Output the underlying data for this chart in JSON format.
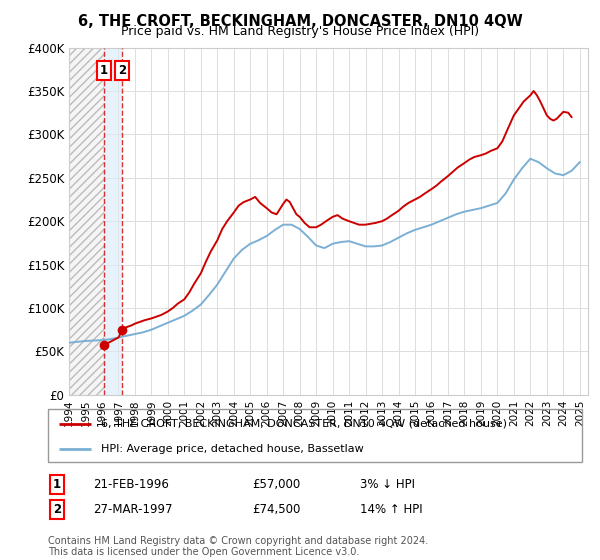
{
  "title": "6, THE CROFT, BECKINGHAM, DONCASTER, DN10 4QW",
  "subtitle": "Price paid vs. HM Land Registry's House Price Index (HPI)",
  "legend_line1": "6, THE CROFT, BECKINGHAM, DONCASTER, DN10 4QW (detached house)",
  "legend_line2": "HPI: Average price, detached house, Bassetlaw",
  "transaction1_date": "21-FEB-1996",
  "transaction1_price": 57000,
  "transaction1_hpi": "3% ↓ HPI",
  "transaction1_label": "1",
  "transaction2_date": "27-MAR-1997",
  "transaction2_price": 74500,
  "transaction2_hpi": "14% ↑ HPI",
  "transaction2_label": "2",
  "footer": "Contains HM Land Registry data © Crown copyright and database right 2024.\nThis data is licensed under the Open Government Licence v3.0.",
  "xmin": 1994.0,
  "xmax": 2025.5,
  "ymin": 0,
  "ymax": 400000,
  "transaction1_x": 1996.13,
  "transaction2_x": 1997.24,
  "red_color": "#cc0000",
  "blue_color": "#7bafd4",
  "hatch_color": "#cccccc",
  "shade_color": "#ddeeff",
  "grid_color": "#dddddd",
  "yticks": [
    0,
    50000,
    100000,
    150000,
    200000,
    250000,
    300000,
    350000,
    400000
  ],
  "ytick_labels": [
    "£0",
    "£50K",
    "£100K",
    "£150K",
    "£200K",
    "£250K",
    "£300K",
    "£350K",
    "£400K"
  ],
  "xticks": [
    1994,
    1995,
    1996,
    1997,
    1998,
    1999,
    2000,
    2001,
    2002,
    2003,
    2004,
    2005,
    2006,
    2007,
    2008,
    2009,
    2010,
    2011,
    2012,
    2013,
    2014,
    2015,
    2016,
    2017,
    2018,
    2019,
    2020,
    2021,
    2022,
    2023,
    2024,
    2025
  ],
  "hpi_years": [
    1994.0,
    1994.5,
    1995.0,
    1995.5,
    1996.0,
    1996.5,
    1997.0,
    1997.5,
    1998.0,
    1998.5,
    1999.0,
    1999.5,
    2000.0,
    2000.5,
    2001.0,
    2001.5,
    2002.0,
    2002.5,
    2003.0,
    2003.5,
    2004.0,
    2004.5,
    2005.0,
    2005.5,
    2006.0,
    2006.5,
    2007.0,
    2007.5,
    2008.0,
    2008.5,
    2009.0,
    2009.5,
    2010.0,
    2010.5,
    2011.0,
    2011.5,
    2012.0,
    2012.5,
    2013.0,
    2013.5,
    2014.0,
    2014.5,
    2015.0,
    2015.5,
    2016.0,
    2016.5,
    2017.0,
    2017.5,
    2018.0,
    2018.5,
    2019.0,
    2019.5,
    2020.0,
    2020.5,
    2021.0,
    2021.5,
    2022.0,
    2022.5,
    2023.0,
    2023.5,
    2024.0,
    2024.5,
    2025.0
  ],
  "hpi_values": [
    60000,
    61000,
    62000,
    62500,
    63000,
    64000,
    66000,
    68000,
    70000,
    72000,
    75000,
    79000,
    83000,
    87000,
    91000,
    97000,
    104000,
    115000,
    127000,
    142000,
    157000,
    167000,
    174000,
    178000,
    183000,
    190000,
    196000,
    196000,
    191000,
    182000,
    172000,
    169000,
    174000,
    176000,
    177000,
    174000,
    171000,
    171000,
    172000,
    176000,
    181000,
    186000,
    190000,
    193000,
    196000,
    200000,
    204000,
    208000,
    211000,
    213000,
    215000,
    218000,
    221000,
    232000,
    248000,
    261000,
    272000,
    268000,
    261000,
    255000,
    253000,
    258000,
    268000
  ],
  "red_years": [
    1996.13,
    1996.4,
    1996.7,
    1997.0,
    1997.24,
    1997.5,
    1997.8,
    1998.0,
    1998.3,
    1998.6,
    1999.0,
    1999.3,
    1999.6,
    2000.0,
    2000.3,
    2000.6,
    2001.0,
    2001.3,
    2001.6,
    2002.0,
    2002.3,
    2002.6,
    2003.0,
    2003.3,
    2003.6,
    2004.0,
    2004.3,
    2004.6,
    2005.0,
    2005.3,
    2005.6,
    2006.0,
    2006.3,
    2006.6,
    2007.0,
    2007.2,
    2007.4,
    2007.6,
    2007.8,
    2008.0,
    2008.3,
    2008.6,
    2009.0,
    2009.3,
    2009.6,
    2010.0,
    2010.3,
    2010.6,
    2011.0,
    2011.3,
    2011.6,
    2012.0,
    2012.3,
    2012.6,
    2013.0,
    2013.3,
    2013.6,
    2014.0,
    2014.3,
    2014.6,
    2015.0,
    2015.3,
    2015.6,
    2016.0,
    2016.3,
    2016.6,
    2017.0,
    2017.3,
    2017.6,
    2018.0,
    2018.3,
    2018.6,
    2019.0,
    2019.3,
    2019.6,
    2020.0,
    2020.3,
    2020.6,
    2021.0,
    2021.3,
    2021.6,
    2022.0,
    2022.2,
    2022.4,
    2022.6,
    2022.8,
    2023.0,
    2023.2,
    2023.4,
    2023.6,
    2023.8,
    2024.0,
    2024.3,
    2024.5
  ],
  "red_values": [
    57000,
    60000,
    63000,
    66000,
    74500,
    78000,
    80000,
    82000,
    84000,
    86000,
    88000,
    90000,
    92000,
    96000,
    100000,
    105000,
    110000,
    118000,
    128000,
    140000,
    153000,
    165000,
    178000,
    191000,
    200000,
    210000,
    218000,
    222000,
    225000,
    228000,
    221000,
    215000,
    210000,
    208000,
    220000,
    225000,
    222000,
    215000,
    208000,
    205000,
    198000,
    193000,
    193000,
    196000,
    200000,
    205000,
    207000,
    203000,
    200000,
    198000,
    196000,
    196000,
    197000,
    198000,
    200000,
    203000,
    207000,
    212000,
    217000,
    221000,
    225000,
    228000,
    232000,
    237000,
    241000,
    246000,
    252000,
    257000,
    262000,
    267000,
    271000,
    274000,
    276000,
    278000,
    281000,
    284000,
    292000,
    305000,
    322000,
    330000,
    338000,
    345000,
    350000,
    345000,
    338000,
    330000,
    322000,
    318000,
    316000,
    318000,
    322000,
    326000,
    325000,
    320000
  ]
}
